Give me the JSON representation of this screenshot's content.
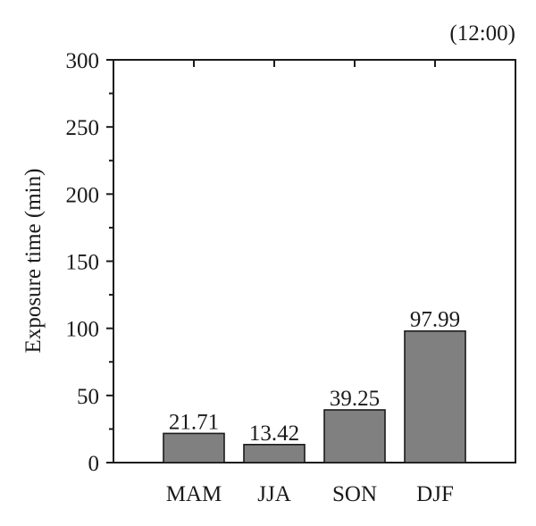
{
  "chart_data": {
    "type": "bar",
    "annotation": "(12:00)",
    "ylabel": "Exposure time (min)",
    "xlabel": "",
    "ylim": [
      0,
      300
    ],
    "yticks": [
      0,
      50,
      100,
      150,
      200,
      250,
      300
    ],
    "categories": [
      "MAM",
      "JJA",
      "SON",
      "DJF"
    ],
    "values": [
      21.71,
      13.42,
      39.25,
      97.99
    ],
    "value_labels": [
      "21.71",
      "13.42",
      "39.25",
      "97.99"
    ],
    "bar_color": "#808080",
    "grid": false
  }
}
